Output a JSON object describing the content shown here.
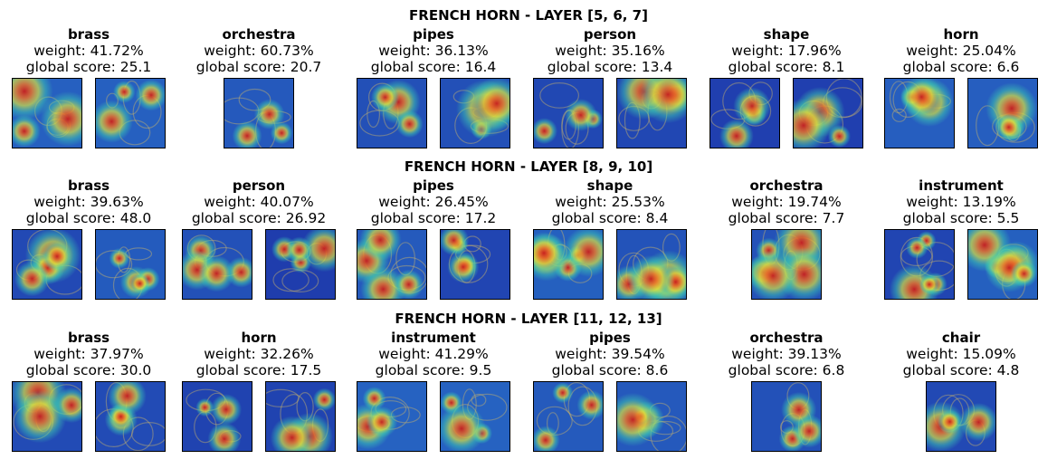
{
  "figure": {
    "rows": [
      {
        "title": "FRENCH HORN - LAYER [5, 6, 7]",
        "panels": [
          {
            "concept": "brass",
            "weight": "weight: 41.72%",
            "score": "global score: 25.1",
            "images": 2
          },
          {
            "concept": "orchestra",
            "weight": "weight: 60.73%",
            "score": "global score: 20.7",
            "images": 1
          },
          {
            "concept": "pipes",
            "weight": "weight: 36.13%",
            "score": "global score: 16.4",
            "images": 2
          },
          {
            "concept": "person",
            "weight": "weight: 35.16%",
            "score": "global score: 13.4",
            "images": 2
          },
          {
            "concept": "shape",
            "weight": "weight: 17.96%",
            "score": "global score: 8.1",
            "images": 2
          },
          {
            "concept": "horn",
            "weight": "weight: 25.04%",
            "score": "global score: 6.6",
            "images": 2
          }
        ]
      },
      {
        "title": "FRENCH HORN - LAYER [8, 9, 10]",
        "panels": [
          {
            "concept": "brass",
            "weight": "weight: 39.63%",
            "score": "global score: 48.0",
            "images": 2
          },
          {
            "concept": "person",
            "weight": "weight: 40.07%",
            "score": "global score: 26.92",
            "images": 2
          },
          {
            "concept": "pipes",
            "weight": "weight: 26.45%",
            "score": "global score: 17.2",
            "images": 2
          },
          {
            "concept": "shape",
            "weight": "weight: 25.53%",
            "score": "global score: 8.4",
            "images": 2
          },
          {
            "concept": "orchestra",
            "weight": "weight: 19.74%",
            "score": "global score: 7.7",
            "images": 1
          },
          {
            "concept": "instrument",
            "weight": "weight: 13.19%",
            "score": "global score: 5.5",
            "images": 2
          }
        ]
      },
      {
        "title": "FRENCH HORN - LAYER [11, 12, 13]",
        "panels": [
          {
            "concept": "brass",
            "weight": "weight: 37.97%",
            "score": "global score: 30.0",
            "images": 2
          },
          {
            "concept": "horn",
            "weight": "weight: 32.26%",
            "score": "global score: 17.5",
            "images": 2
          },
          {
            "concept": "instrument",
            "weight": "weight: 41.29%",
            "score": "global score: 9.5",
            "images": 2
          },
          {
            "concept": "pipes",
            "weight": "weight: 39.54%",
            "score": "global score: 8.6",
            "images": 2
          },
          {
            "concept": "orchestra",
            "weight": "weight: 39.13%",
            "score": "global score: 6.8",
            "images": 1
          },
          {
            "concept": "chair",
            "weight": "weight: 15.09%",
            "score": "global score: 4.8",
            "images": 1
          }
        ]
      }
    ],
    "heatmap_colors": {
      "cold": "#1a1f9e",
      "cool": "#2f8fd8",
      "mid": "#3fd0b0",
      "warm": "#d8e040",
      "hot": "#e8702a",
      "peak": "#c81e1e"
    }
  }
}
